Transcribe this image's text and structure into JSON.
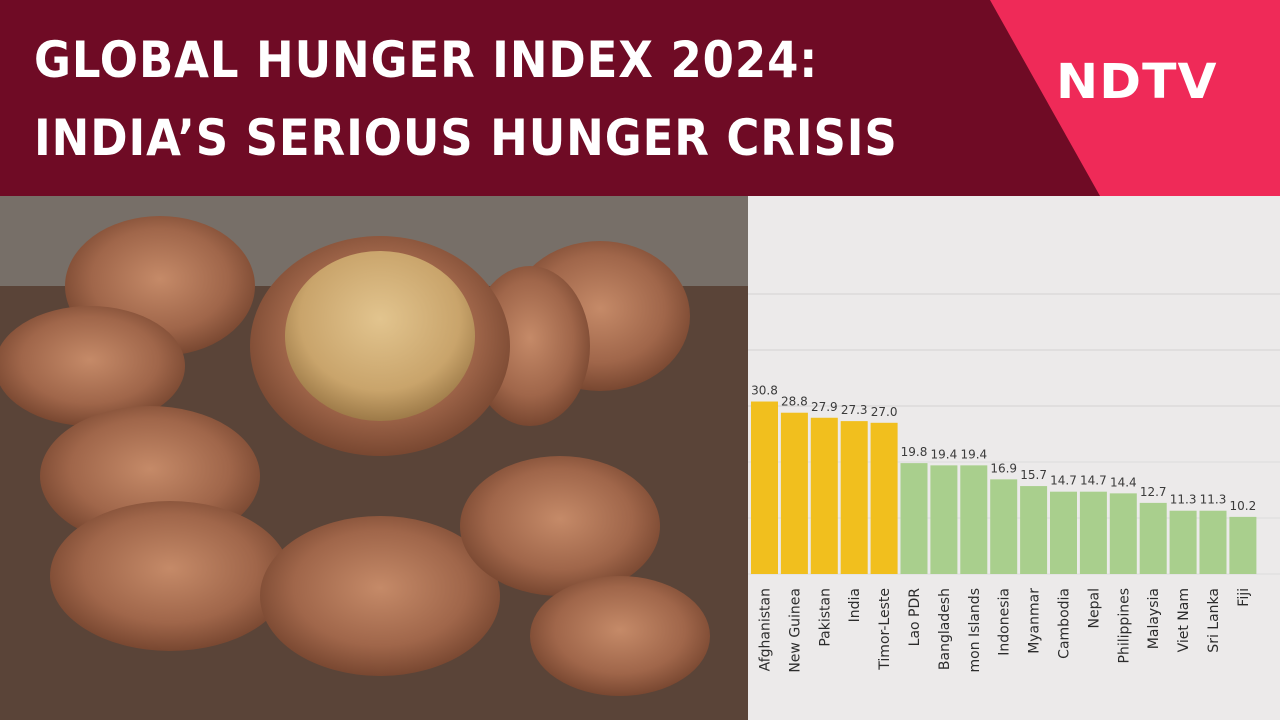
{
  "header": {
    "line1": "GLOBAL HUNGER INDEX 2024:",
    "line2": "INDIA’S SERIOUS HUNGER CRISIS",
    "logo_text": "NDTV",
    "colors": {
      "banner": "#6f0b25",
      "logo_panel": "#ef2a58",
      "text": "#ffffff"
    }
  },
  "photo": {
    "subject": "cupped-hands-with-grain"
  },
  "chart_data": {
    "type": "bar",
    "categories": [
      "Afghanistan",
      "New Guinea",
      "Pakistan",
      "India",
      "Timor-Leste",
      "Lao PDR",
      "Bangladesh",
      "mon Islands",
      "Indonesia",
      "Myanmar",
      "Cambodia",
      "Nepal",
      "Philippines",
      "Malaysia",
      "Viet Nam",
      "Sri Lanka",
      "Fiji"
    ],
    "values": [
      30.8,
      28.8,
      27.9,
      27.3,
      27.0,
      19.8,
      19.4,
      19.4,
      16.9,
      15.7,
      14.7,
      14.7,
      14.4,
      12.7,
      11.3,
      11.3,
      10.2
    ],
    "value_labels": [
      "30.8",
      "28.8",
      "27.9",
      "27.3",
      "27.0",
      "19.8",
      "19.4",
      "19.4",
      "16.9",
      "15.7",
      "14.7",
      "14.7",
      "14.4",
      "12.7",
      "11.3",
      "11.3",
      "10.2"
    ],
    "severity": [
      "serious",
      "serious",
      "serious",
      "serious",
      "serious",
      "moderate",
      "moderate",
      "moderate",
      "moderate",
      "moderate",
      "moderate",
      "moderate",
      "moderate",
      "moderate",
      "moderate",
      "moderate",
      "moderate"
    ],
    "colors": {
      "serious": "#f1bf1e",
      "moderate": "#a9cf8d"
    },
    "y_ticks": [
      "50",
      "40",
      "30"
    ],
    "ylim": [
      0,
      55
    ],
    "grid": true
  }
}
